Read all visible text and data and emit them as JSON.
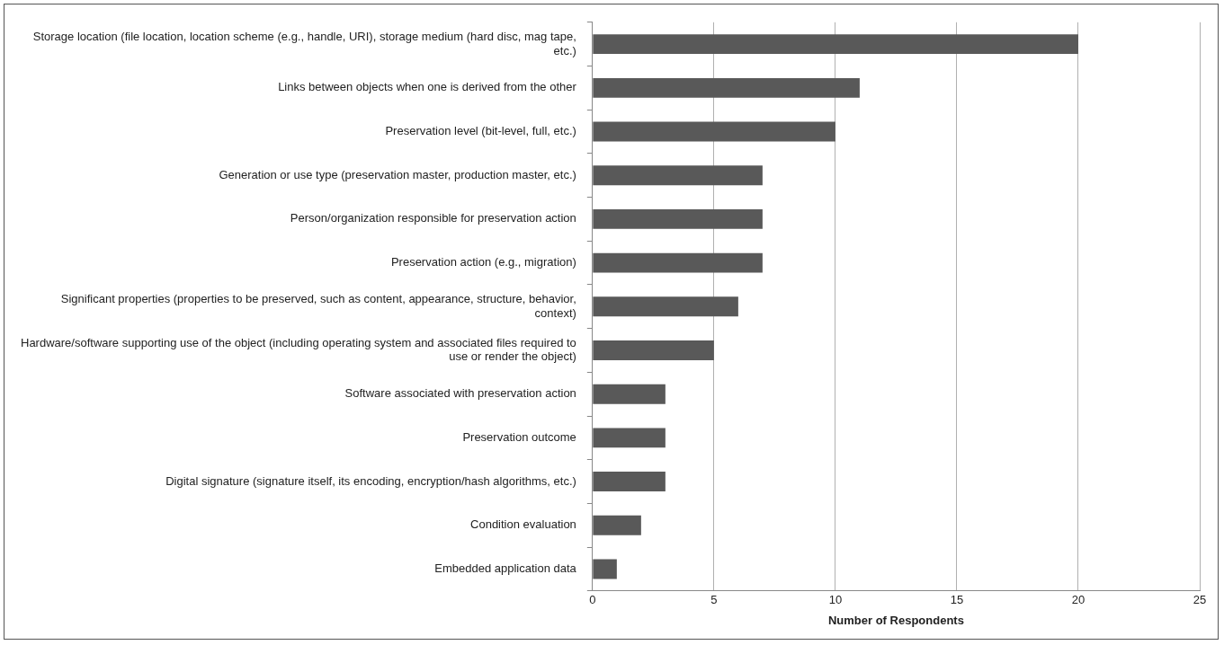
{
  "chart_data": {
    "type": "bar",
    "orientation": "horizontal",
    "categories": [
      "Storage location (file location, location scheme (e.g., handle, URI), storage medium (hard disc, mag tape, etc.)",
      "Links between objects when one is derived from the other",
      "Preservation level (bit-level, full, etc.)",
      "Generation or use type (preservation master, production master, etc.)",
      "Person/organization responsible for preservation action",
      "Preservation action (e.g., migration)",
      "Significant properties (properties to be preserved, such as content, appearance, structure, behavior, context)",
      "Hardware/software supporting use of the object (including operating system and associated files required to use or render the object)",
      "Software associated with preservation action",
      "Preservation outcome",
      "Digital signature (signature itself, its encoding, encryption/hash algorithms, etc.)",
      "Condition evaluation",
      "Embedded application data"
    ],
    "values": [
      20,
      11,
      10,
      7,
      7,
      7,
      6,
      5,
      3,
      3,
      3,
      2,
      1
    ],
    "color": "#595959",
    "xlabel": "Number of Respondents",
    "xlim": [
      0,
      25
    ],
    "xticks": [
      0,
      5,
      10,
      15,
      20,
      25
    ],
    "grid": "x",
    "legend": false
  }
}
